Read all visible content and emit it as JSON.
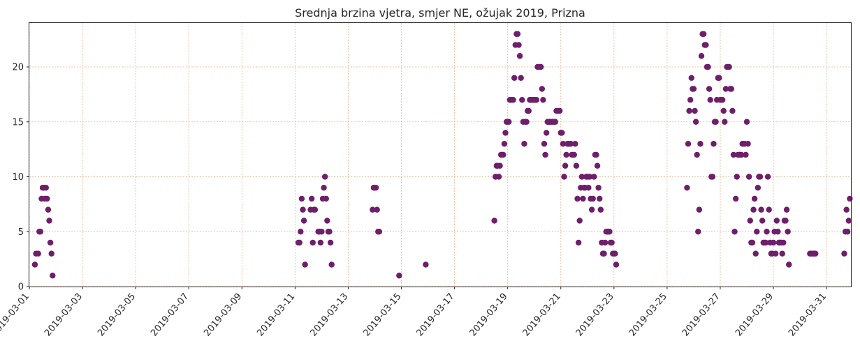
{
  "chart_data": {
    "type": "scatter",
    "title": "Srednja brzina vjetra, smjer NE, ožujak 2019, Prizna",
    "xlabel": "",
    "ylabel": "",
    "grid": true,
    "point_color": "#6e1f6a",
    "grid_color": "#f0b48c",
    "xlim": [
      "2019-03-01T00:00",
      "2019-03-31T22:00"
    ],
    "ylim": [
      0,
      24
    ],
    "x_ticks": [
      "2019-03-01",
      "2019-03-03",
      "2019-03-05",
      "2019-03-07",
      "2019-03-09",
      "2019-03-11",
      "2019-03-13",
      "2019-03-15",
      "2019-03-17",
      "2019-03-19",
      "2019-03-21",
      "2019-03-23",
      "2019-03-25",
      "2019-03-27",
      "2019-03-29",
      "2019-03-31"
    ],
    "y_ticks": [
      0,
      5,
      10,
      15,
      20
    ],
    "series": [
      {
        "points": [
          [
            "2019-03-01T05:00",
            2
          ],
          [
            "2019-03-01T06:00",
            3
          ],
          [
            "2019-03-01T08:00",
            3
          ],
          [
            "2019-03-01T09:00",
            5
          ],
          [
            "2019-03-01T10:00",
            5
          ],
          [
            "2019-03-01T11:00",
            8
          ],
          [
            "2019-03-01T12:00",
            9
          ],
          [
            "2019-03-01T13:00",
            9
          ],
          [
            "2019-03-01T14:00",
            8
          ],
          [
            "2019-03-01T15:00",
            9
          ],
          [
            "2019-03-01T16:00",
            8
          ],
          [
            "2019-03-01T17:00",
            7
          ],
          [
            "2019-03-01T18:00",
            6
          ],
          [
            "2019-03-01T19:00",
            4
          ],
          [
            "2019-03-01T20:00",
            3
          ],
          [
            "2019-03-01T21:00",
            1
          ],
          [
            "2019-03-11T03:00",
            4
          ],
          [
            "2019-03-11T04:00",
            4
          ],
          [
            "2019-03-11T05:00",
            5
          ],
          [
            "2019-03-11T06:00",
            8
          ],
          [
            "2019-03-11T07:00",
            7
          ],
          [
            "2019-03-11T08:00",
            6
          ],
          [
            "2019-03-11T09:00",
            2
          ],
          [
            "2019-03-11T14:00",
            7
          ],
          [
            "2019-03-11T15:00",
            8
          ],
          [
            "2019-03-11T16:00",
            4
          ],
          [
            "2019-03-11T17:00",
            7
          ],
          [
            "2019-03-11T18:00",
            7
          ],
          [
            "2019-03-11T21:00",
            5
          ],
          [
            "2019-03-11T22:00",
            5
          ],
          [
            "2019-03-11T23:00",
            4
          ],
          [
            "2019-03-12T00:00",
            5
          ],
          [
            "2019-03-12T01:00",
            8
          ],
          [
            "2019-03-12T02:00",
            9
          ],
          [
            "2019-03-12T03:00",
            10
          ],
          [
            "2019-03-12T04:00",
            8
          ],
          [
            "2019-03-12T05:00",
            6
          ],
          [
            "2019-03-12T06:00",
            5
          ],
          [
            "2019-03-12T07:00",
            5
          ],
          [
            "2019-03-12T08:00",
            4
          ],
          [
            "2019-03-12T09:00",
            2
          ],
          [
            "2019-03-13T22:00",
            7
          ],
          [
            "2019-03-13T23:00",
            9
          ],
          [
            "2019-03-14T00:00",
            9
          ],
          [
            "2019-03-14T01:00",
            9
          ],
          [
            "2019-03-14T02:00",
            7
          ],
          [
            "2019-03-14T03:00",
            5
          ],
          [
            "2019-03-14T04:00",
            5
          ],
          [
            "2019-03-14T22:00",
            1
          ],
          [
            "2019-03-15T22:00",
            2
          ],
          [
            "2019-03-18T12:00",
            6
          ],
          [
            "2019-03-18T13:00",
            10
          ],
          [
            "2019-03-18T14:00",
            11
          ],
          [
            "2019-03-18T15:00",
            11
          ],
          [
            "2019-03-18T16:00",
            10
          ],
          [
            "2019-03-18T17:00",
            11
          ],
          [
            "2019-03-18T18:00",
            12
          ],
          [
            "2019-03-18T19:00",
            12
          ],
          [
            "2019-03-18T20:00",
            12
          ],
          [
            "2019-03-18T21:00",
            13
          ],
          [
            "2019-03-18T22:00",
            14
          ],
          [
            "2019-03-18T23:00",
            15
          ],
          [
            "2019-03-19T00:00",
            15
          ],
          [
            "2019-03-19T01:00",
            15
          ],
          [
            "2019-03-19T02:00",
            17
          ],
          [
            "2019-03-19T03:00",
            17
          ],
          [
            "2019-03-19T04:00",
            17
          ],
          [
            "2019-03-19T05:00",
            17
          ],
          [
            "2019-03-19T06:00",
            19
          ],
          [
            "2019-03-19T07:00",
            22
          ],
          [
            "2019-03-19T08:00",
            23
          ],
          [
            "2019-03-19T09:00",
            23
          ],
          [
            "2019-03-19T10:00",
            22
          ],
          [
            "2019-03-19T11:00",
            21
          ],
          [
            "2019-03-19T12:00",
            19
          ],
          [
            "2019-03-19T13:00",
            17
          ],
          [
            "2019-03-19T14:00",
            15
          ],
          [
            "2019-03-19T15:00",
            13
          ],
          [
            "2019-03-19T16:00",
            15
          ],
          [
            "2019-03-19T17:00",
            15
          ],
          [
            "2019-03-19T18:00",
            16
          ],
          [
            "2019-03-19T19:00",
            16
          ],
          [
            "2019-03-19T20:00",
            17
          ],
          [
            "2019-03-19T21:00",
            17
          ],
          [
            "2019-03-19T22:00",
            17
          ],
          [
            "2019-03-19T23:00",
            17
          ],
          [
            "2019-03-20T00:00",
            17
          ],
          [
            "2019-03-20T01:00",
            17
          ],
          [
            "2019-03-20T02:00",
            17
          ],
          [
            "2019-03-20T03:00",
            20
          ],
          [
            "2019-03-20T04:00",
            20
          ],
          [
            "2019-03-20T05:00",
            20
          ],
          [
            "2019-03-20T06:00",
            20
          ],
          [
            "2019-03-20T07:00",
            18
          ],
          [
            "2019-03-20T08:00",
            17
          ],
          [
            "2019-03-20T09:00",
            13
          ],
          [
            "2019-03-20T10:00",
            12
          ],
          [
            "2019-03-20T11:00",
            14
          ],
          [
            "2019-03-20T12:00",
            15
          ],
          [
            "2019-03-20T13:00",
            15
          ],
          [
            "2019-03-20T14:00",
            15
          ],
          [
            "2019-03-20T15:00",
            15
          ],
          [
            "2019-03-20T16:00",
            15
          ],
          [
            "2019-03-20T17:00",
            15
          ],
          [
            "2019-03-20T18:00",
            15
          ],
          [
            "2019-03-20T19:00",
            15
          ],
          [
            "2019-03-20T20:00",
            16
          ],
          [
            "2019-03-20T21:00",
            16
          ],
          [
            "2019-03-20T22:00",
            16
          ],
          [
            "2019-03-20T23:00",
            16
          ],
          [
            "2019-03-21T00:00",
            14
          ],
          [
            "2019-03-21T01:00",
            14
          ],
          [
            "2019-03-21T02:00",
            13
          ],
          [
            "2019-03-21T03:00",
            10
          ],
          [
            "2019-03-21T04:00",
            11
          ],
          [
            "2019-03-21T05:00",
            12
          ],
          [
            "2019-03-21T06:00",
            13
          ],
          [
            "2019-03-21T07:00",
            13
          ],
          [
            "2019-03-21T08:00",
            13
          ],
          [
            "2019-03-21T09:00",
            13
          ],
          [
            "2019-03-21T10:00",
            12
          ],
          [
            "2019-03-21T11:00",
            12
          ],
          [
            "2019-03-21T12:00",
            12
          ],
          [
            "2019-03-21T13:00",
            13
          ],
          [
            "2019-03-21T14:00",
            11
          ],
          [
            "2019-03-21T15:00",
            8
          ],
          [
            "2019-03-21T16:00",
            4
          ],
          [
            "2019-03-21T17:00",
            6
          ],
          [
            "2019-03-21T18:00",
            9
          ],
          [
            "2019-03-21T19:00",
            10
          ],
          [
            "2019-03-21T20:00",
            8
          ],
          [
            "2019-03-21T21:00",
            9
          ],
          [
            "2019-03-21T22:00",
            9
          ],
          [
            "2019-03-21T23:00",
            10
          ],
          [
            "2019-03-22T00:00",
            10
          ],
          [
            "2019-03-22T01:00",
            9
          ],
          [
            "2019-03-22T02:00",
            10
          ],
          [
            "2019-03-22T03:00",
            8
          ],
          [
            "2019-03-22T04:00",
            7
          ],
          [
            "2019-03-22T05:00",
            8
          ],
          [
            "2019-03-22T06:00",
            10
          ],
          [
            "2019-03-22T07:00",
            12
          ],
          [
            "2019-03-22T08:00",
            12
          ],
          [
            "2019-03-22T09:00",
            11
          ],
          [
            "2019-03-22T10:00",
            9
          ],
          [
            "2019-03-22T11:00",
            8
          ],
          [
            "2019-03-22T12:00",
            7
          ],
          [
            "2019-03-22T13:00",
            4
          ],
          [
            "2019-03-22T14:00",
            3
          ],
          [
            "2019-03-22T15:00",
            3
          ],
          [
            "2019-03-22T16:00",
            4
          ],
          [
            "2019-03-22T17:00",
            5
          ],
          [
            "2019-03-22T18:00",
            5
          ],
          [
            "2019-03-22T19:00",
            5
          ],
          [
            "2019-03-22T20:00",
            5
          ],
          [
            "2019-03-22T21:00",
            4
          ],
          [
            "2019-03-22T22:00",
            4
          ],
          [
            "2019-03-22T23:00",
            3
          ],
          [
            "2019-03-23T00:00",
            3
          ],
          [
            "2019-03-23T01:00",
            3
          ],
          [
            "2019-03-23T02:00",
            2
          ],
          [
            "2019-03-25T18:00",
            9
          ],
          [
            "2019-03-25T19:00",
            13
          ],
          [
            "2019-03-25T20:00",
            16
          ],
          [
            "2019-03-25T21:00",
            17
          ],
          [
            "2019-03-25T22:00",
            19
          ],
          [
            "2019-03-25T23:00",
            18
          ],
          [
            "2019-03-26T00:00",
            18
          ],
          [
            "2019-03-26T01:00",
            16
          ],
          [
            "2019-03-26T02:00",
            15
          ],
          [
            "2019-03-26T03:00",
            12
          ],
          [
            "2019-03-26T04:00",
            5
          ],
          [
            "2019-03-26T05:00",
            7
          ],
          [
            "2019-03-26T06:00",
            13
          ],
          [
            "2019-03-26T07:00",
            21
          ],
          [
            "2019-03-26T08:00",
            23
          ],
          [
            "2019-03-26T09:00",
            23
          ],
          [
            "2019-03-26T10:00",
            22
          ],
          [
            "2019-03-26T11:00",
            22
          ],
          [
            "2019-03-26T12:00",
            20
          ],
          [
            "2019-03-26T13:00",
            20
          ],
          [
            "2019-03-26T14:00",
            18
          ],
          [
            "2019-03-26T15:00",
            17
          ],
          [
            "2019-03-26T16:00",
            10
          ],
          [
            "2019-03-26T17:00",
            10
          ],
          [
            "2019-03-26T18:00",
            13
          ],
          [
            "2019-03-26T19:00",
            15
          ],
          [
            "2019-03-26T20:00",
            15
          ],
          [
            "2019-03-26T21:00",
            17
          ],
          [
            "2019-03-26T22:00",
            19
          ],
          [
            "2019-03-26T23:00",
            19
          ],
          [
            "2019-03-27T00:00",
            17
          ],
          [
            "2019-03-27T01:00",
            17
          ],
          [
            "2019-03-27T02:00",
            17
          ],
          [
            "2019-03-27T03:00",
            16
          ],
          [
            "2019-03-27T04:00",
            15
          ],
          [
            "2019-03-27T05:00",
            18
          ],
          [
            "2019-03-27T06:00",
            20
          ],
          [
            "2019-03-27T07:00",
            20
          ],
          [
            "2019-03-27T08:00",
            20
          ],
          [
            "2019-03-27T09:00",
            18
          ],
          [
            "2019-03-27T10:00",
            18
          ],
          [
            "2019-03-27T11:00",
            16
          ],
          [
            "2019-03-27T12:00",
            12
          ],
          [
            "2019-03-27T13:00",
            5
          ],
          [
            "2019-03-27T14:00",
            8
          ],
          [
            "2019-03-27T15:00",
            10
          ],
          [
            "2019-03-27T16:00",
            12
          ],
          [
            "2019-03-27T17:00",
            12
          ],
          [
            "2019-03-27T18:00",
            12
          ],
          [
            "2019-03-27T19:00",
            12
          ],
          [
            "2019-03-27T20:00",
            13
          ],
          [
            "2019-03-27T21:00",
            13
          ],
          [
            "2019-03-27T22:00",
            13
          ],
          [
            "2019-03-27T23:00",
            12
          ],
          [
            "2019-03-28T00:00",
            15
          ],
          [
            "2019-03-28T01:00",
            13
          ],
          [
            "2019-03-28T02:00",
            10
          ],
          [
            "2019-03-28T03:00",
            6
          ],
          [
            "2019-03-28T04:00",
            4
          ],
          [
            "2019-03-28T05:00",
            4
          ],
          [
            "2019-03-28T06:00",
            7
          ],
          [
            "2019-03-28T07:00",
            8
          ],
          [
            "2019-03-28T08:00",
            3
          ],
          [
            "2019-03-28T09:00",
            5
          ],
          [
            "2019-03-28T10:00",
            9
          ],
          [
            "2019-03-28T11:00",
            10
          ],
          [
            "2019-03-28T12:00",
            10
          ],
          [
            "2019-03-28T13:00",
            7
          ],
          [
            "2019-03-28T14:00",
            6
          ],
          [
            "2019-03-28T15:00",
            4
          ],
          [
            "2019-03-28T16:00",
            4
          ],
          [
            "2019-03-28T17:00",
            4
          ],
          [
            "2019-03-28T18:00",
            5
          ],
          [
            "2019-03-28T19:00",
            10
          ],
          [
            "2019-03-28T20:00",
            7
          ],
          [
            "2019-03-28T21:00",
            4
          ],
          [
            "2019-03-28T22:00",
            3
          ],
          [
            "2019-03-28T23:00",
            3
          ],
          [
            "2019-03-29T00:00",
            4
          ],
          [
            "2019-03-29T01:00",
            5
          ],
          [
            "2019-03-29T02:00",
            3
          ],
          [
            "2019-03-29T03:00",
            6
          ],
          [
            "2019-03-29T04:00",
            5
          ],
          [
            "2019-03-29T05:00",
            4
          ],
          [
            "2019-03-29T06:00",
            4
          ],
          [
            "2019-03-29T07:00",
            4
          ],
          [
            "2019-03-29T08:00",
            3
          ],
          [
            "2019-03-29T09:00",
            4
          ],
          [
            "2019-03-29T10:00",
            6
          ],
          [
            "2019-03-29T11:00",
            6
          ],
          [
            "2019-03-29T12:00",
            7
          ],
          [
            "2019-03-29T13:00",
            5
          ],
          [
            "2019-03-29T14:00",
            2
          ],
          [
            "2019-03-30T09:00",
            3
          ],
          [
            "2019-03-30T10:00",
            3
          ],
          [
            "2019-03-30T11:00",
            3
          ],
          [
            "2019-03-30T12:00",
            3
          ],
          [
            "2019-03-30T13:00",
            3
          ],
          [
            "2019-03-30T14:00",
            3
          ],
          [
            "2019-03-31T16:00",
            3
          ],
          [
            "2019-03-31T17:00",
            5
          ],
          [
            "2019-03-31T18:00",
            7
          ],
          [
            "2019-03-31T19:00",
            5
          ],
          [
            "2019-03-31T20:00",
            6
          ],
          [
            "2019-03-31T21:00",
            8
          ]
        ]
      }
    ]
  }
}
